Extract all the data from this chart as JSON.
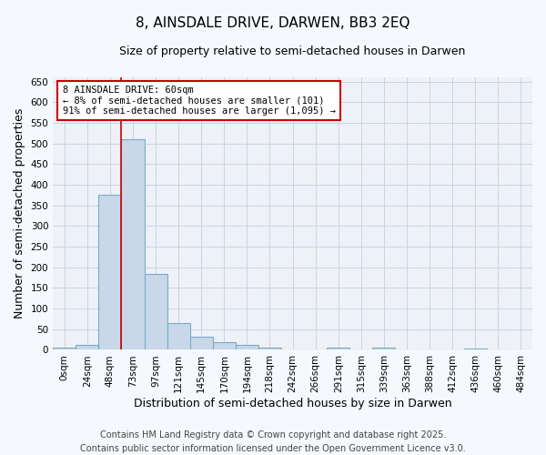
{
  "title": "8, AINSDALE DRIVE, DARWEN, BB3 2EQ",
  "subtitle": "Size of property relative to semi-detached houses in Darwen",
  "xlabel": "Distribution of semi-detached houses by size in Darwen",
  "ylabel": "Number of semi-detached properties",
  "categories": [
    "0sqm",
    "24sqm",
    "48sqm",
    "73sqm",
    "97sqm",
    "121sqm",
    "145sqm",
    "170sqm",
    "194sqm",
    "218sqm",
    "242sqm",
    "266sqm",
    "291sqm",
    "315sqm",
    "339sqm",
    "363sqm",
    "388sqm",
    "412sqm",
    "436sqm",
    "460sqm",
    "484sqm"
  ],
  "values": [
    5,
    13,
    375,
    510,
    185,
    65,
    32,
    18,
    12,
    5,
    0,
    0,
    5,
    0,
    5,
    0,
    0,
    0,
    3,
    0,
    0
  ],
  "bar_color": "#c8d8e8",
  "bar_edge_color": "#7aaac8",
  "property_line_color": "#cc0000",
  "annotation_text": "8 AINSDALE DRIVE: 60sqm\n← 8% of semi-detached houses are smaller (101)\n91% of semi-detached houses are larger (1,095) →",
  "annotation_box_color": "#cc0000",
  "ylim": [
    0,
    660
  ],
  "yticks": [
    0,
    50,
    100,
    150,
    200,
    250,
    300,
    350,
    400,
    450,
    500,
    550,
    600,
    650
  ],
  "footer_line1": "Contains HM Land Registry data © Crown copyright and database right 2025.",
  "footer_line2": "Contains public sector information licensed under the Open Government Licence v3.0.",
  "bg_color": "#f5f8fc",
  "plot_bg_color": "#eef2f8",
  "grid_color": "#c8d4e0",
  "title_fontsize": 11,
  "subtitle_fontsize": 9,
  "axis_label_fontsize": 9,
  "tick_fontsize": 7.5,
  "annotation_fontsize": 7.5,
  "footer_fontsize": 7
}
